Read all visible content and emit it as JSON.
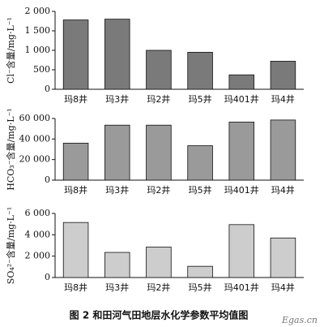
{
  "chart_data": [
    {
      "type": "bar",
      "ylabel": "Cl⁻含量/mg·L⁻¹",
      "color": "#7a7a7a",
      "categories": [
        "玛8井",
        "玛3井",
        "玛2井",
        "玛5井",
        "玛401井",
        "玛4井"
      ],
      "values": [
        1780,
        1800,
        1000,
        950,
        370,
        720
      ],
      "ylim": [
        0,
        2000
      ],
      "yticks": [
        0,
        500,
        {
          "value": 1000,
          "label": "1 000"
        },
        {
          "value": 1500,
          "label": "1 500"
        },
        {
          "value": 2000,
          "label": "2 000"
        }
      ]
    },
    {
      "type": "bar",
      "ylabel": "HCO₃⁻含量/mg·L⁻¹",
      "color": "#9a9a9a",
      "categories": [
        "玛8井",
        "玛3井",
        "玛2井",
        "玛5井",
        "玛401井",
        "玛4井"
      ],
      "values": [
        36000,
        53500,
        53500,
        33500,
        56500,
        58500
      ],
      "ylim": [
        0,
        60000
      ],
      "yticks": [
        0,
        {
          "value": 20000,
          "label": "20 000"
        },
        {
          "value": 40000,
          "label": "40 000"
        },
        {
          "value": 60000,
          "label": "60 000"
        }
      ]
    },
    {
      "type": "bar",
      "ylabel": "SO₄²⁻含量/mg·L⁻¹",
      "color": "#cdcdcd",
      "categories": [
        "玛8井",
        "玛3井",
        "玛2井",
        "玛5井",
        "玛401井",
        "玛4井"
      ],
      "values": [
        5150,
        2350,
        2850,
        1050,
        4950,
        3700
      ],
      "ylim": [
        0,
        6000
      ],
      "yticks": [
        0,
        {
          "value": 2000,
          "label": "2 000"
        },
        {
          "value": 4000,
          "label": "4 000"
        },
        {
          "value": 6000,
          "label": "6 000"
        }
      ]
    }
  ],
  "caption": "图 2   和田河气田地层水化学参数平均值图",
  "watermark": "Egas.cn"
}
